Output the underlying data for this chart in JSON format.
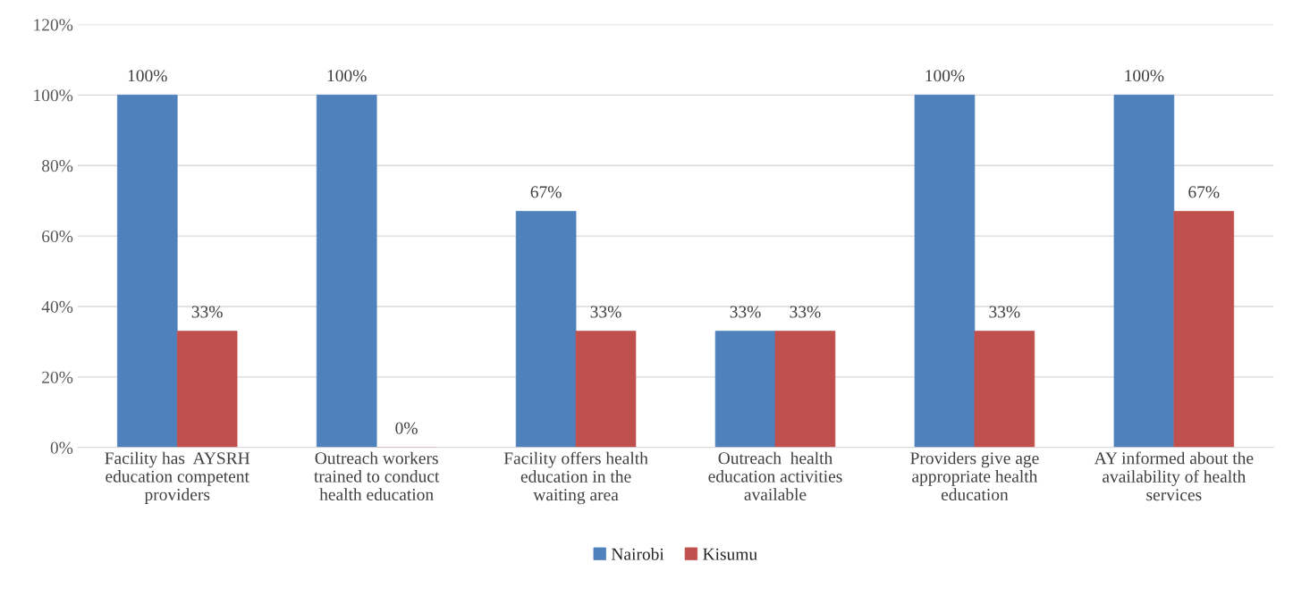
{
  "chart_data": {
    "type": "bar",
    "categories": [
      "Facility has  AYSRH education competent providers",
      "Outreach workers trained to conduct health education",
      "Facility offers health education in the waiting area",
      "Outreach  health education activities available",
      "Providers give age appropriate health education",
      "AY informed about the availability of health services"
    ],
    "series": [
      {
        "name": "Nairobi",
        "color": "#4f81bd",
        "values": [
          100,
          100,
          67,
          33,
          100,
          100
        ],
        "value_labels": [
          "100%",
          "100%",
          "67%",
          "33%",
          "100%",
          "100%"
        ]
      },
      {
        "name": "Kisumu",
        "color": "#c0504d",
        "values": [
          33,
          0,
          33,
          33,
          33,
          67
        ],
        "value_labels": [
          "33%",
          "0%",
          "33%",
          "33%",
          "33%",
          "67%"
        ]
      }
    ],
    "ylim": [
      0,
      120
    ],
    "yticks": [
      {
        "value": 0,
        "label": "0%"
      },
      {
        "value": 20,
        "label": "20%"
      },
      {
        "value": 40,
        "label": "40%"
      },
      {
        "value": 60,
        "label": "60%"
      },
      {
        "value": 80,
        "label": "80%"
      },
      {
        "value": 100,
        "label": "100%"
      },
      {
        "value": 120,
        "label": "120%"
      }
    ],
    "grid": "y",
    "legend": "bottom"
  }
}
